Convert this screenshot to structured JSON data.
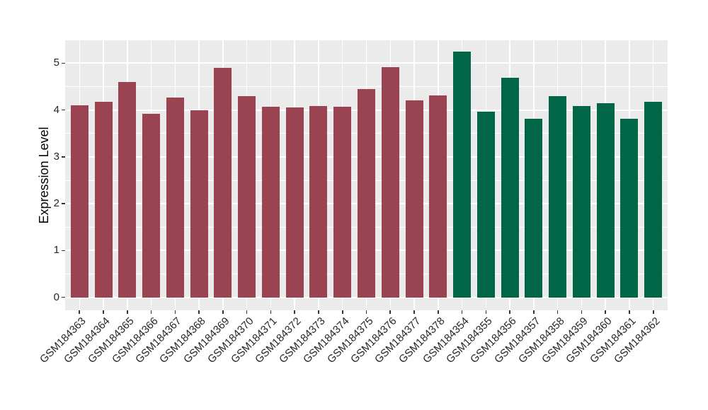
{
  "chart_data": {
    "type": "bar",
    "title": "",
    "xlabel": "",
    "ylabel": "Expression Level",
    "ylim": [
      0,
      5.5
    ],
    "yticks": [
      0,
      1,
      2,
      3,
      4,
      5
    ],
    "grid": true,
    "legend_position": "none",
    "panel_background_color": "#EBEBEB",
    "grid_color": "#FFFFFF",
    "tick_mark_color": "#333333",
    "axis_text_color": "#262626",
    "categories": [
      "GSM184363",
      "GSM184364",
      "GSM184365",
      "GSM184366",
      "GSM184367",
      "GSM184368",
      "GSM184369",
      "GSM184370",
      "GSM184371",
      "GSM184372",
      "GSM184373",
      "GSM184374",
      "GSM184375",
      "GSM184376",
      "GSM184377",
      "GSM184378",
      "GSM184354",
      "GSM184355",
      "GSM184356",
      "GSM184357",
      "GSM184358",
      "GSM184359",
      "GSM184360",
      "GSM184361",
      "GSM184362"
    ],
    "values": [
      4.1,
      4.17,
      4.59,
      3.92,
      4.26,
      3.99,
      4.9,
      4.29,
      4.07,
      4.05,
      4.09,
      4.07,
      4.44,
      4.91,
      4.21,
      4.31,
      5.24,
      3.96,
      4.69,
      3.81,
      4.29,
      4.08,
      4.14,
      3.81,
      4.17
    ],
    "bar_groups": [
      "group1",
      "group1",
      "group1",
      "group1",
      "group1",
      "group1",
      "group1",
      "group1",
      "group1",
      "group1",
      "group1",
      "group1",
      "group1",
      "group1",
      "group1",
      "group1",
      "group2",
      "group2",
      "group2",
      "group2",
      "group2",
      "group2",
      "group2",
      "group2",
      "group2"
    ],
    "group_colors": {
      "group1": "#9A4451",
      "group2": "#006647"
    }
  }
}
